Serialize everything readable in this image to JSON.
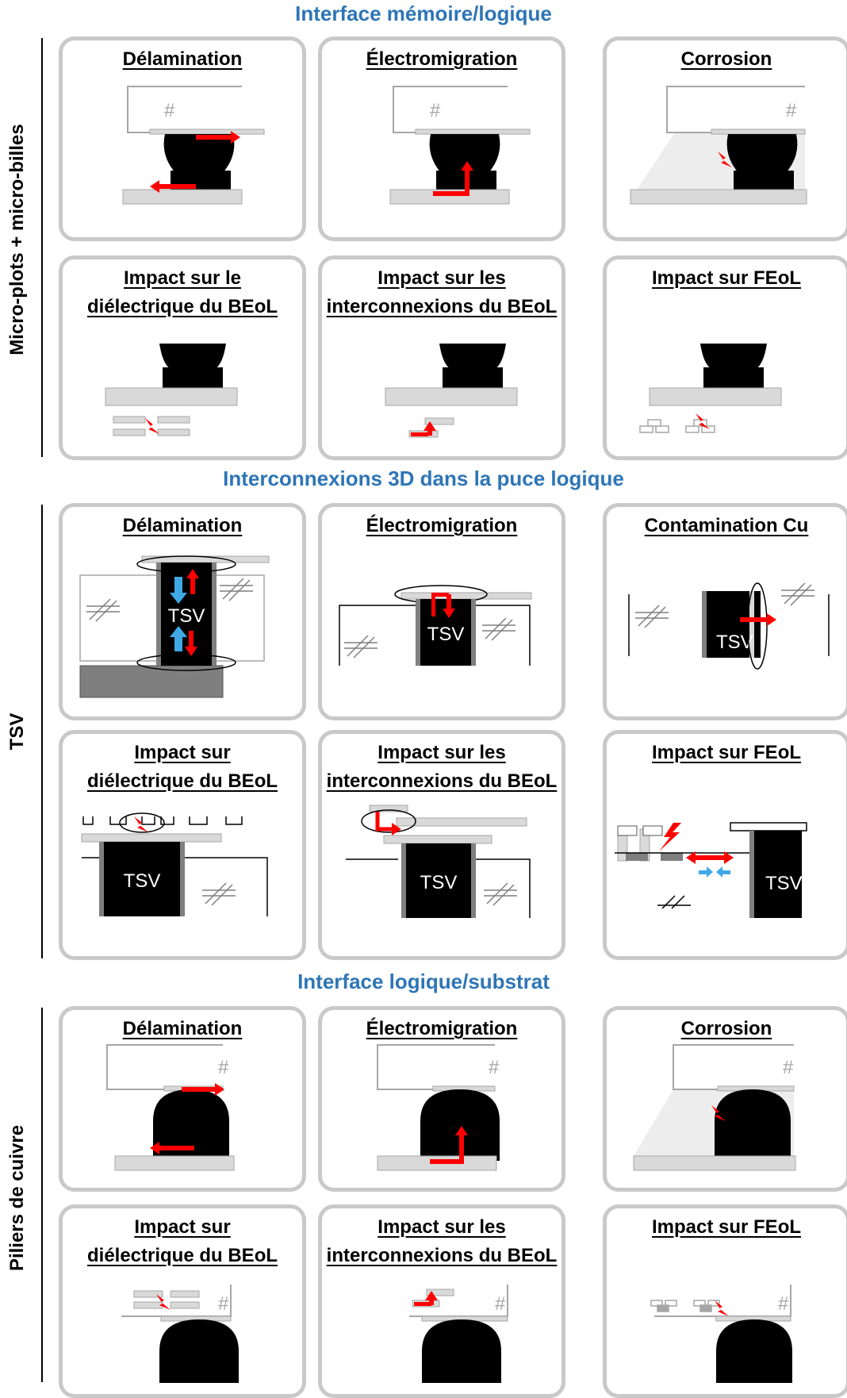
{
  "sections": [
    {
      "title": "Interface mémoire/logique",
      "side_label": "Micro-plots + micro-billes",
      "panels": [
        {
          "title_lines": [
            "Délamination"
          ],
          "fig": "del-bump"
        },
        {
          "title_lines": [
            "Électromigration"
          ],
          "fig": "em-bump"
        },
        {
          "title_lines": [
            "Corrosion"
          ],
          "fig": "cor-bump"
        },
        {
          "title_lines": [
            "Impact sur le",
            "diélectrique du BEoL"
          ],
          "fig": "beol-diel-bump"
        },
        {
          "title_lines": [
            "Impact sur les",
            "interconnexions du BEoL"
          ],
          "fig": "beol-int-bump"
        },
        {
          "title_lines": [
            "Impact sur FEoL"
          ],
          "fig": "feol-bump"
        }
      ]
    },
    {
      "title": "Interconnexions 3D dans la puce logique",
      "side_label": "TSV",
      "panels": [
        {
          "title_lines": [
            "Délamination"
          ],
          "fig": "del-tsv"
        },
        {
          "title_lines": [
            "Électromigration"
          ],
          "fig": "em-tsv"
        },
        {
          "title_lines": [
            "Contamination Cu"
          ],
          "fig": "cu-tsv"
        },
        {
          "title_lines": [
            "Impact sur",
            "diélectrique du BEoL"
          ],
          "fig": "beol-diel-tsv"
        },
        {
          "title_lines": [
            "Impact sur les",
            "interconnexions du BEoL"
          ],
          "fig": "beol-int-tsv"
        },
        {
          "title_lines": [
            "Impact sur FEoL"
          ],
          "fig": "feol-tsv"
        }
      ]
    },
    {
      "title": "Interface logique/substrat",
      "side_label": "Piliers de cuivre",
      "panels": [
        {
          "title_lines": [
            "Délamination"
          ],
          "fig": "del-pil"
        },
        {
          "title_lines": [
            "Électromigration"
          ],
          "fig": "em-pil"
        },
        {
          "title_lines": [
            "Corrosion"
          ],
          "fig": "cor-pil"
        },
        {
          "title_lines": [
            "Impact sur",
            "diélectrique du BEoL"
          ],
          "fig": "beol-diel-pil"
        },
        {
          "title_lines": [
            "Impact sur les",
            "interconnexions du BEoL"
          ],
          "fig": "beol-int-pil"
        },
        {
          "title_lines": [
            "Impact sur FEoL"
          ],
          "fig": "feol-pil"
        }
      ]
    }
  ],
  "labels": {
    "tsv": "TSV",
    "tsv_cut": "TSV",
    "hatch": "#"
  },
  "colors": {
    "title_blue": "#2e75b6",
    "panel_border": "#c9c9c9",
    "arrow_red": "#ff0000",
    "arrow_blue": "#3fa9e6",
    "light_gray": "#d9d9d9",
    "dark_gray": "#7f7f7f",
    "black": "#000000"
  }
}
